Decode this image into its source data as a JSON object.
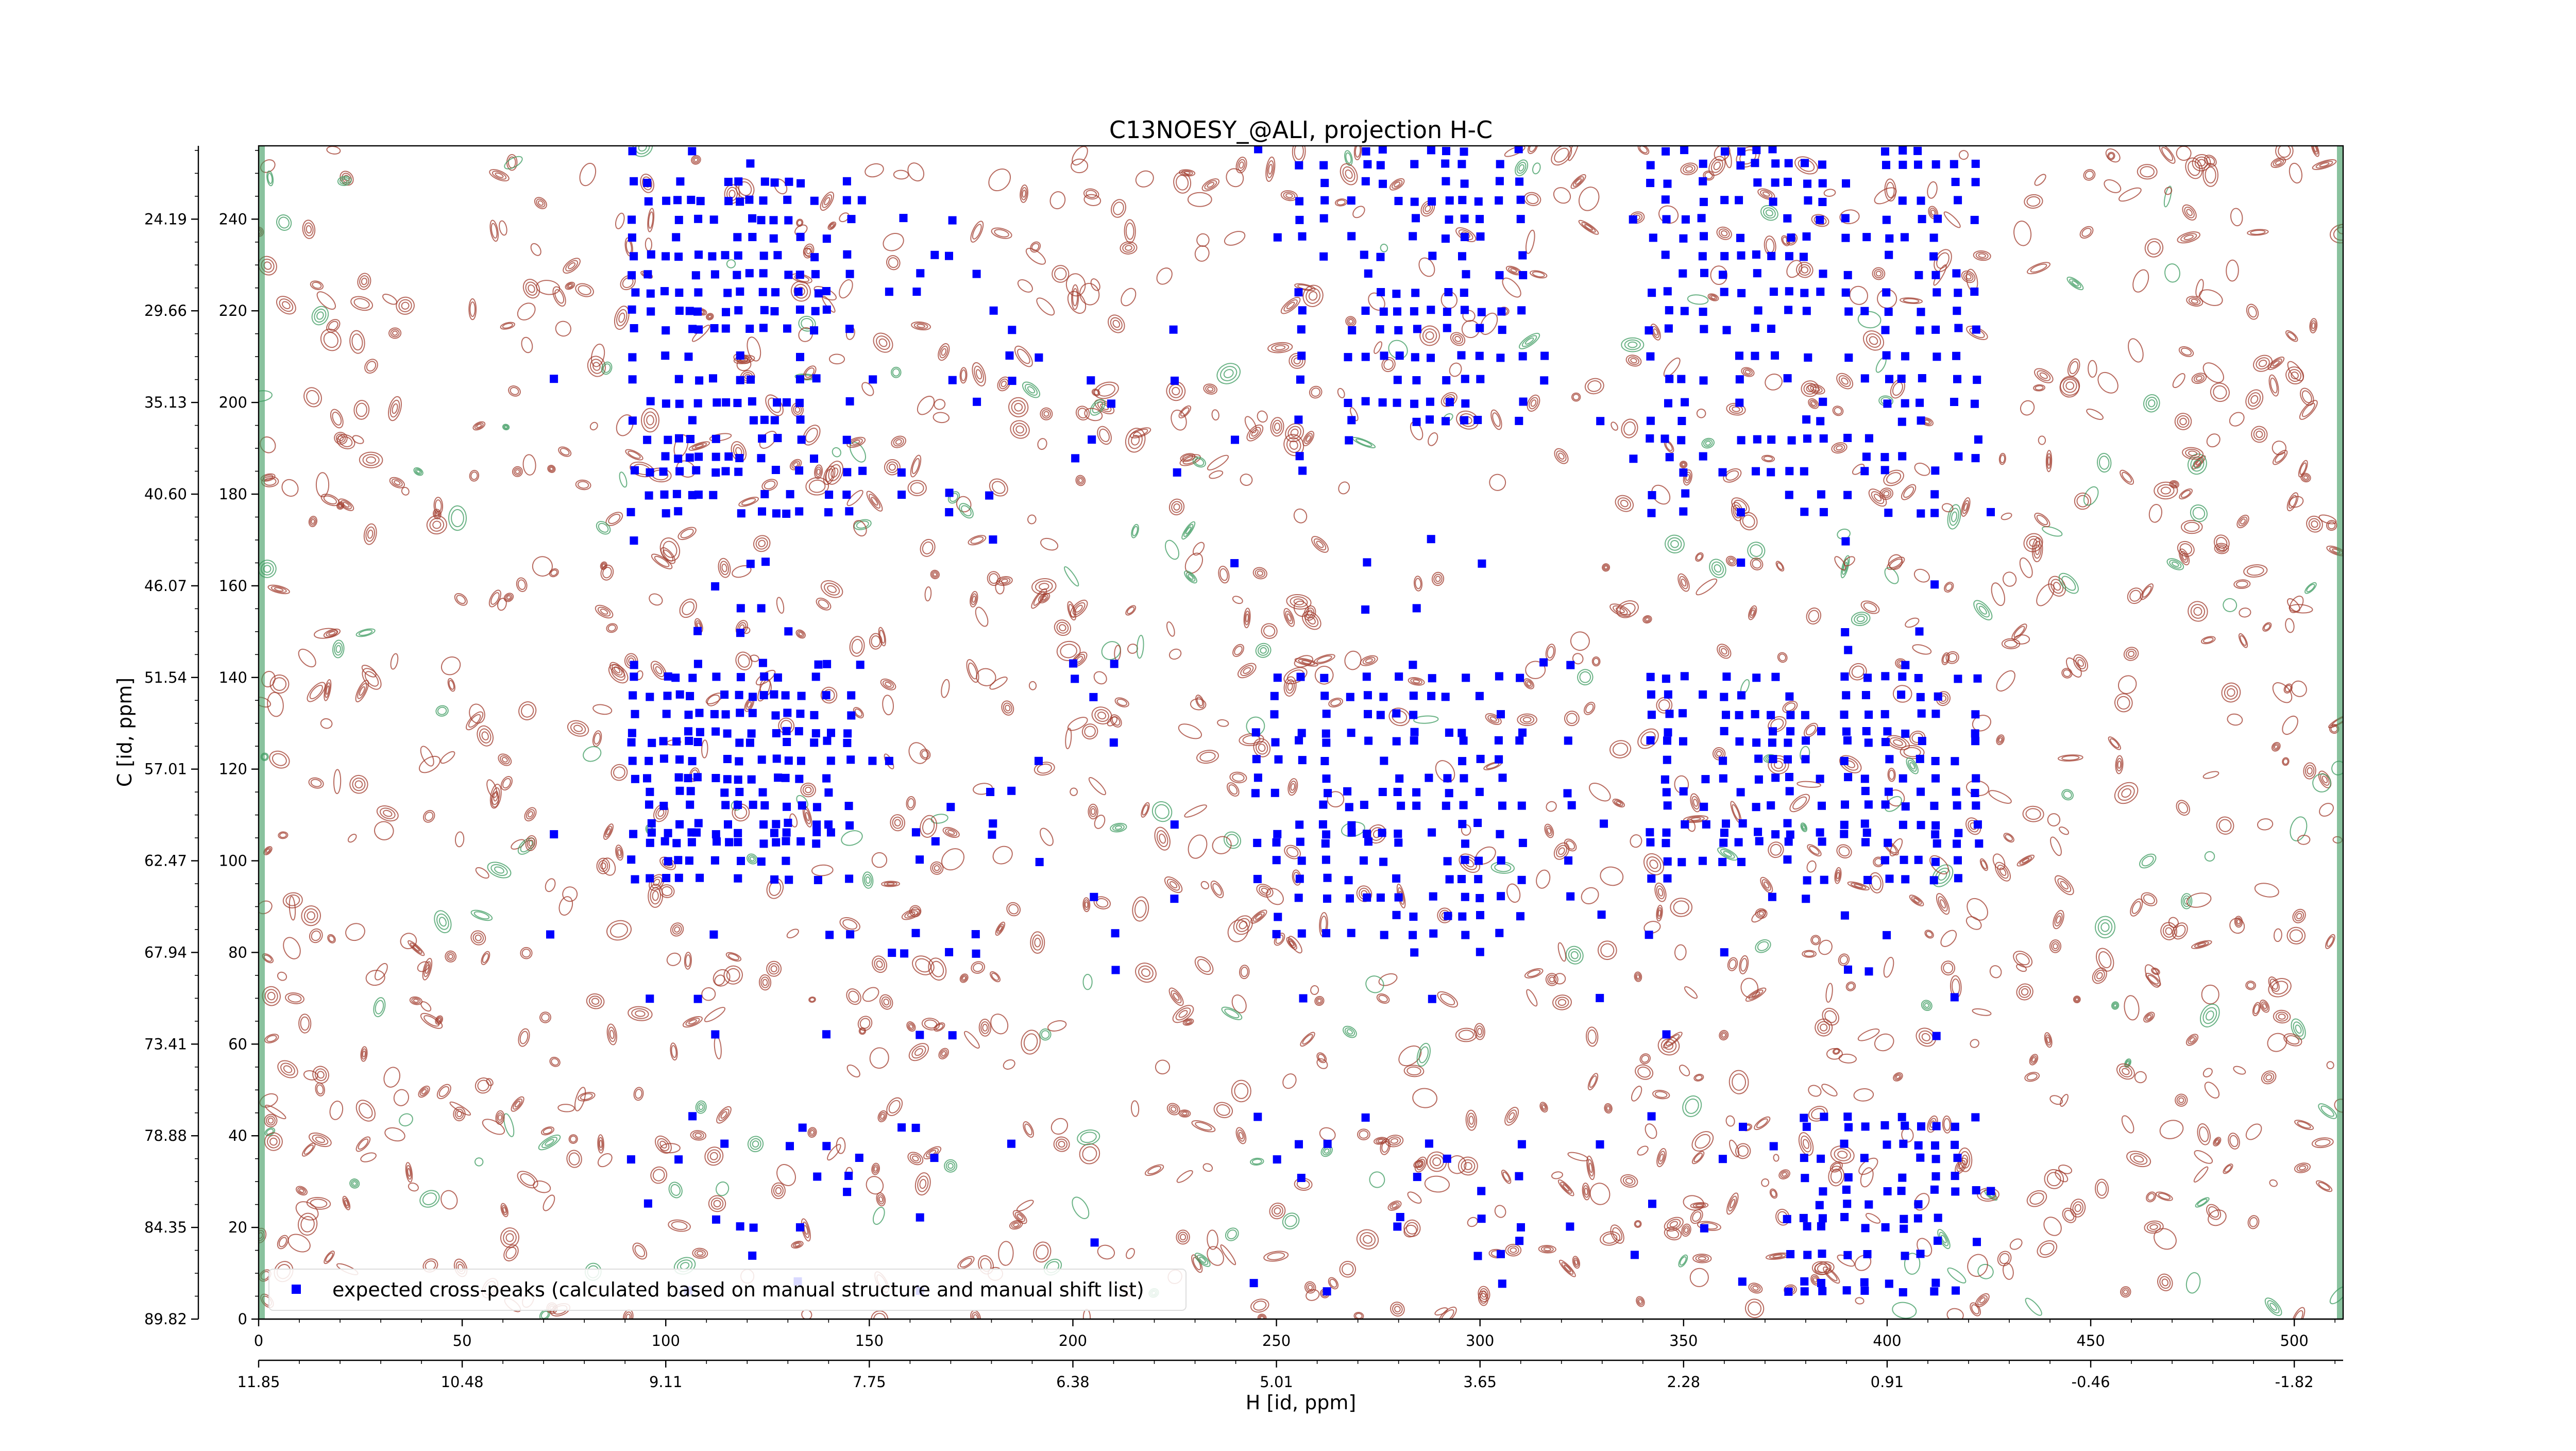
{
  "chart_data": {
    "type": "scatter",
    "title": "C13NOESY_@ALI, projection H-C",
    "xlabel": "H [id, ppm]",
    "ylabel": "C [id, ppm]",
    "xlim": [
      0,
      512
    ],
    "ylim": [
      0,
      256
    ],
    "x_index_ticks": [
      0,
      50,
      100,
      150,
      200,
      250,
      300,
      350,
      400,
      450,
      500
    ],
    "y_index_ticks": [
      0,
      20,
      40,
      60,
      80,
      100,
      120,
      140,
      160,
      180,
      200,
      220,
      240
    ],
    "x_ppm_ticks": [
      "11.85",
      "10.48",
      "9.11",
      "7.75",
      "6.38",
      "5.01",
      "3.65",
      "2.28",
      "0.91",
      "-0.46",
      "-1.82"
    ],
    "y_ppm_ticks": [
      "89.82",
      "84.35",
      "78.88",
      "73.41",
      "67.94",
      "62.47",
      "57.01",
      "51.54",
      "46.07",
      "40.60",
      "35.13",
      "29.66",
      "24.19"
    ],
    "legend": {
      "placement": "lower-left",
      "entries": [
        "expected cross-peaks (calculated based on manual structure and manual shift list)"
      ]
    },
    "colors": {
      "peaks": "#0000ff",
      "contour_positive": "#a0392b",
      "contour_negative": "#3a9a5e"
    },
    "series": [
      {
        "name": "expected cross-peaks (calculated based on manual structure and manual shift list)",
        "columns_x": [
          72,
          92,
          96,
          100,
          103,
          106,
          108,
          112,
          115,
          118,
          121,
          124,
          127,
          130,
          133,
          137,
          140,
          145,
          148,
          151,
          155,
          158,
          162,
          166,
          170,
          176,
          180,
          185,
          192,
          200,
          205,
          210,
          225,
          240,
          245,
          250,
          256,
          262,
          268,
          272,
          276,
          280,
          284,
          288,
          292,
          296,
          300,
          305,
          310,
          316,
          322,
          330,
          338,
          342,
          346,
          350,
          355,
          360,
          364,
          368,
          372,
          376,
          380,
          384,
          390,
          395,
          400,
          404,
          408,
          412,
          417,
          422,
          426
        ],
        "rows_y": [
          6,
          8,
          14,
          17,
          20,
          22,
          25,
          28,
          31,
          35,
          38,
          42,
          44,
          62,
          70,
          76,
          80,
          84,
          88,
          92,
          96,
          100,
          104,
          106,
          108,
          112,
          115,
          118,
          122,
          126,
          128,
          132,
          136,
          140,
          143,
          146,
          150,
          155,
          160,
          165,
          170,
          176,
          180,
          185,
          188,
          192,
          196,
          200,
          205,
          210,
          216,
          220,
          224,
          228,
          232,
          236,
          240,
          244,
          248,
          252,
          255
        ],
        "clusters": [
          {
            "x": [
              92,
              145
            ],
            "y": [
              96,
              140
            ]
          },
          {
            "x": [
              92,
              145
            ],
            "y": [
              176,
              248
            ]
          },
          {
            "x": [
              245,
              310
            ],
            "y": [
              82,
              140
            ]
          },
          {
            "x": [
              255,
              310
            ],
            "y": [
              196,
              255
            ]
          },
          {
            "x": [
              340,
              385
            ],
            "y": [
              96,
              140
            ]
          },
          {
            "x": [
              340,
              385
            ],
            "y": [
              176,
              255
            ]
          },
          {
            "x": [
              390,
              425
            ],
            "y": [
              176,
              255
            ]
          },
          {
            "x": [
              390,
              425
            ],
            "y": [
              96,
              140
            ]
          },
          {
            "x": [
              380,
              420
            ],
            "y": [
              4,
              44
            ]
          }
        ]
      }
    ]
  }
}
